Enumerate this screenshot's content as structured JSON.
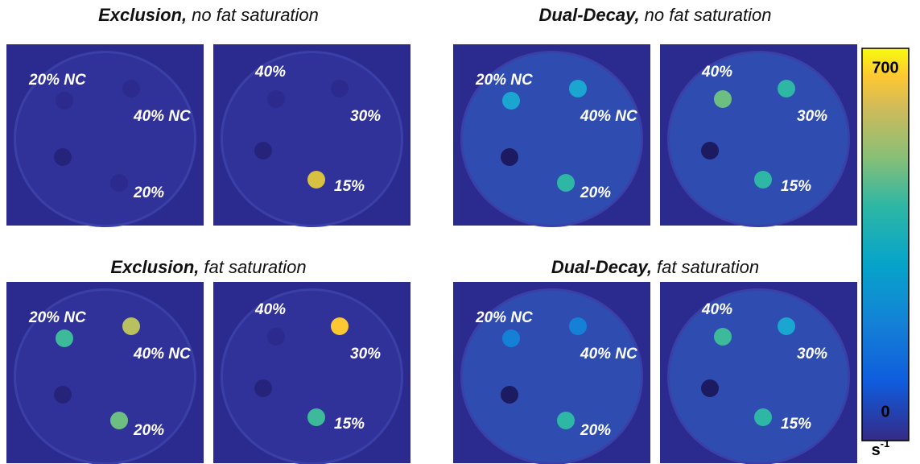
{
  "panels": [
    {
      "title_bold": "Exclusion,",
      "title_rest": "no fat saturation",
      "images": [
        {
          "labels": [
            "20% NC",
            "40% NC",
            "20%"
          ]
        },
        {
          "labels": [
            "40%",
            "30%",
            "15%"
          ]
        }
      ]
    },
    {
      "title_bold": "Dual-Decay,",
      "title_rest": "no fat saturation",
      "images": [
        {
          "labels": [
            "20% NC",
            "40% NC",
            "20%"
          ]
        },
        {
          "labels": [
            "40%",
            "30%",
            "15%"
          ]
        }
      ]
    },
    {
      "title_bold": "Exclusion,",
      "title_rest": "fat saturation",
      "images": [
        {
          "labels": [
            "20% NC",
            "40% NC",
            "20%"
          ]
        },
        {
          "labels": [
            "40%",
            "30%",
            "15%"
          ]
        }
      ]
    },
    {
      "title_bold": "Dual-Decay,",
      "title_rest": "fat saturation",
      "images": [
        {
          "labels": [
            "20% NC",
            "40% NC",
            "20%"
          ]
        },
        {
          "labels": [
            "40%",
            "30%",
            "15%"
          ]
        }
      ]
    }
  ],
  "colorbar": {
    "max": 700,
    "min": 0,
    "unit": "s",
    "unit_exponent": "-1"
  }
}
